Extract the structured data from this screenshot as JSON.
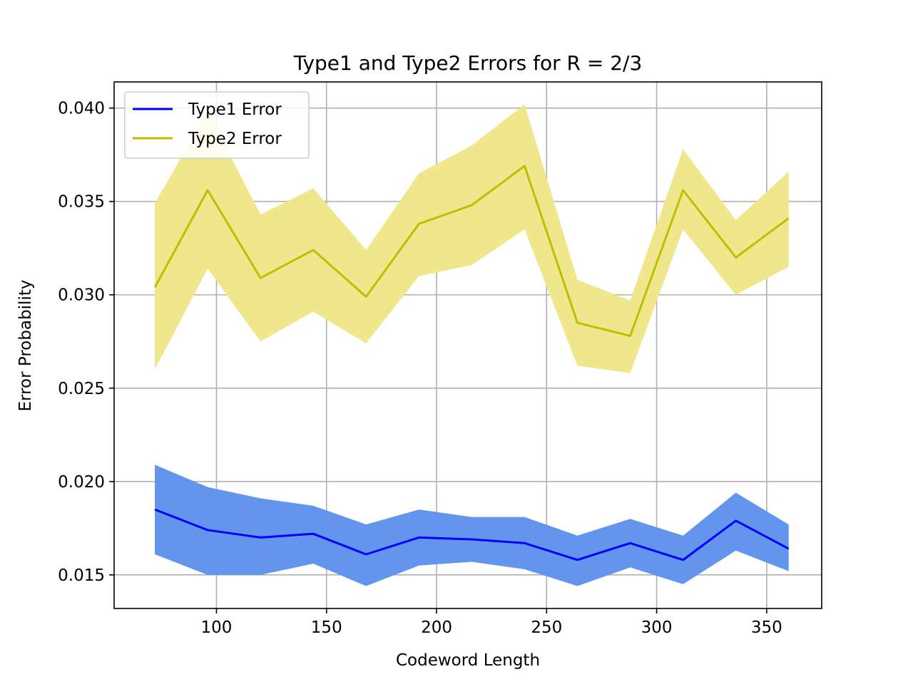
{
  "chart_data": {
    "type": "line",
    "title": "Type1 and Type2 Errors for R = 2/3",
    "xlabel": "Codeword Length",
    "ylabel": "Error Probability",
    "xlim": [
      53.5,
      375
    ],
    "ylim": [
      0.0132,
      0.0414
    ],
    "xticks": [
      100,
      150,
      200,
      250,
      300,
      350
    ],
    "xtick_labels": [
      "100",
      "150",
      "200",
      "250",
      "300",
      "350"
    ],
    "yticks": [
      0.015,
      0.02,
      0.025,
      0.03,
      0.035,
      0.04
    ],
    "ytick_labels": [
      "0.015",
      "0.020",
      "0.025",
      "0.030",
      "0.035",
      "0.040"
    ],
    "grid": true,
    "legend_position": "upper-left",
    "x": [
      72,
      96,
      120,
      144,
      168,
      192,
      216,
      240,
      264,
      288,
      312,
      336,
      360
    ],
    "series": [
      {
        "name": "Type1 Error",
        "color": "#0000ff",
        "band_color": "#6495ed",
        "values": [
          0.0185,
          0.0174,
          0.017,
          0.0172,
          0.0161,
          0.017,
          0.0169,
          0.0167,
          0.0158,
          0.0167,
          0.0158,
          0.0179,
          0.0164
        ],
        "lower": [
          0.0161,
          0.015,
          0.015,
          0.0156,
          0.0144,
          0.0155,
          0.0157,
          0.0153,
          0.0144,
          0.0154,
          0.0145,
          0.0163,
          0.0152
        ],
        "upper": [
          0.0209,
          0.0197,
          0.0191,
          0.0187,
          0.0177,
          0.0185,
          0.0181,
          0.0181,
          0.0171,
          0.018,
          0.0171,
          0.0194,
          0.0177
        ]
      },
      {
        "name": "Type2 Error",
        "color": "#bfbf00",
        "band_color": "#f0e68c",
        "values": [
          0.0304,
          0.0356,
          0.0309,
          0.0324,
          0.0299,
          0.0338,
          0.0348,
          0.0369,
          0.0285,
          0.0278,
          0.0356,
          0.032,
          0.0341
        ],
        "lower": [
          0.026,
          0.0314,
          0.0275,
          0.0291,
          0.0274,
          0.031,
          0.0316,
          0.0335,
          0.0262,
          0.0258,
          0.0335,
          0.03,
          0.0315
        ],
        "upper": [
          0.0349,
          0.0398,
          0.0343,
          0.0357,
          0.0324,
          0.0365,
          0.038,
          0.0402,
          0.0308,
          0.0297,
          0.0378,
          0.034,
          0.0366
        ]
      }
    ]
  }
}
